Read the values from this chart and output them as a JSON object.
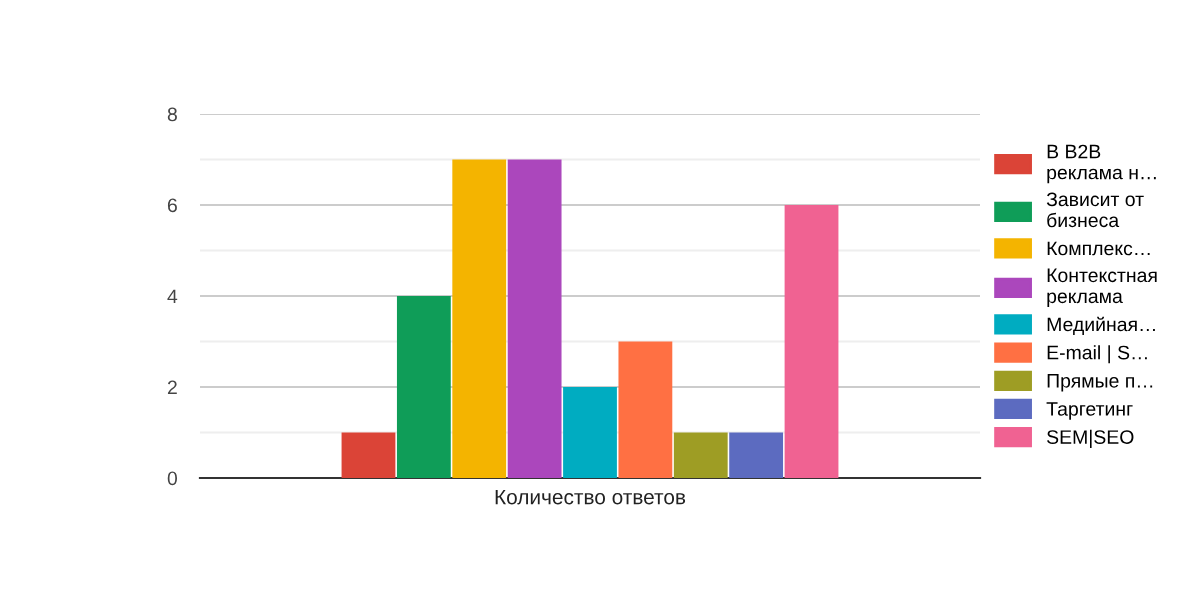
{
  "chart_data": {
    "type": "bar",
    "categories": [
      "Количество ответов"
    ],
    "ylim": [
      0,
      8
    ],
    "yticks": [
      0,
      {
        "value": 1,
        "label": null
      },
      2,
      {
        "value": 3,
        "label": null
      },
      4,
      {
        "value": 5,
        "label": null
      },
      6,
      {
        "value": 7,
        "label": null
      },
      8
    ],
    "grid": "y",
    "legend": "right",
    "series": [
      {
        "name": "В B2B\nреклама н…",
        "color": "#db4437",
        "values": [
          1
        ]
      },
      {
        "name": "Зависит от\nбизнеса",
        "color": "#0f9d58",
        "values": [
          4
        ]
      },
      {
        "name": "Комплекс…",
        "color": "#f4b400",
        "values": [
          7
        ]
      },
      {
        "name": "Контекстная\nреклама",
        "color": "#ab47bc",
        "values": [
          7
        ]
      },
      {
        "name": "Медийная…",
        "color": "#00acc1",
        "values": [
          2
        ]
      },
      {
        "name": "E-mail | S…",
        "color": "#ff7043",
        "values": [
          3
        ]
      },
      {
        "name": "Прямые п…",
        "color": "#9e9d24",
        "values": [
          1
        ]
      },
      {
        "name": "Таргетинг",
        "color": "#5c6bc0",
        "values": [
          1
        ]
      },
      {
        "name": "SEM|SEO",
        "color": "#f06292",
        "values": [
          6
        ]
      }
    ]
  }
}
